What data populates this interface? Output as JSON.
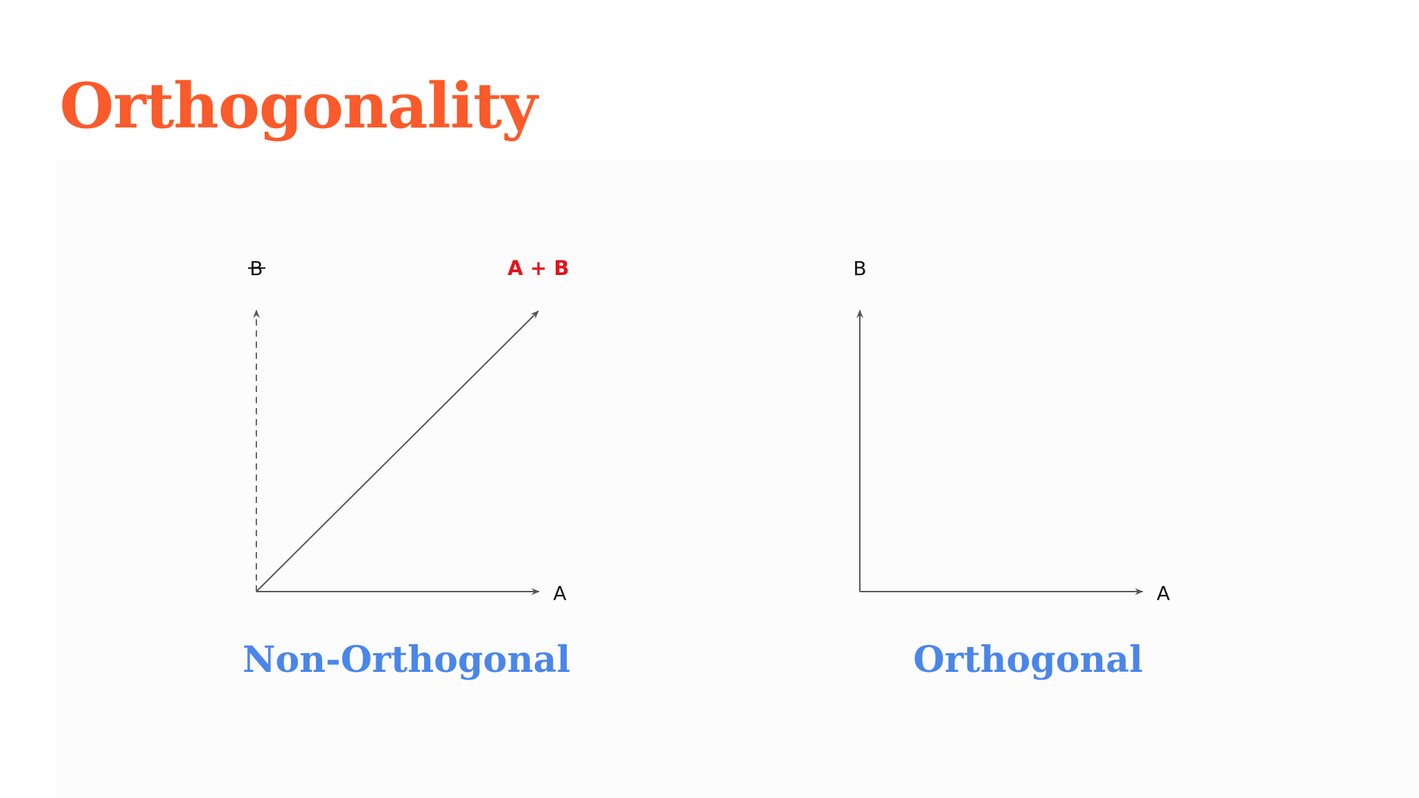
{
  "title": "Orthogonality",
  "colors": {
    "title": "#fb5a2a",
    "caption": "#4a86ea",
    "sum_vector_label": "#e3141b",
    "axis": "#555555"
  },
  "left_diagram": {
    "caption": "Non-Orthogonal",
    "label_b": "B",
    "label_a": "A",
    "label_sum": "A + B",
    "b_style": "dashed, struck through"
  },
  "right_diagram": {
    "caption": "Orthogonal",
    "label_b": "B",
    "label_a": "A"
  }
}
